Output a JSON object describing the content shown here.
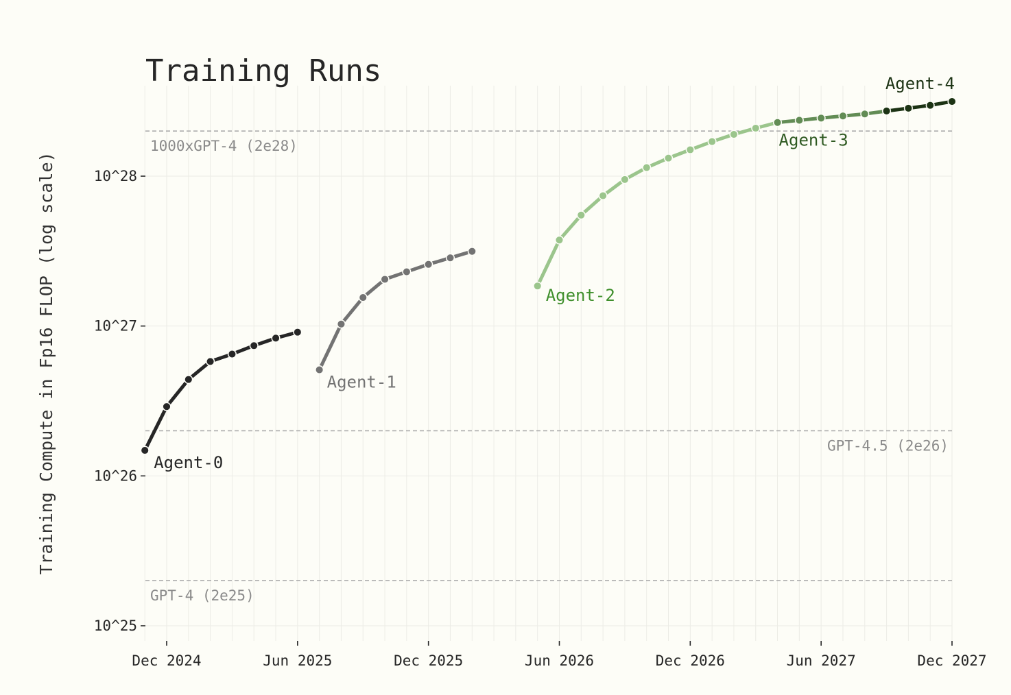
{
  "chart_data": {
    "type": "line",
    "title": "Training Runs",
    "ylabel": "Training Compute in Fp16 FLOP (log scale)",
    "xlabel": "",
    "y_scale": "log",
    "ylim": [
      1e+25,
      5e+28
    ],
    "xlim": [
      "2024-11-01",
      "2027-12-01"
    ],
    "grid": true,
    "legend": "none",
    "x_ticks": [
      {
        "date": "2024-12-01",
        "label": "Dec 2024"
      },
      {
        "date": "2025-06-01",
        "label": "Jun 2025"
      },
      {
        "date": "2025-12-01",
        "label": "Dec 2025"
      },
      {
        "date": "2026-06-01",
        "label": "Jun 2026"
      },
      {
        "date": "2026-12-01",
        "label": "Dec 2026"
      },
      {
        "date": "2027-06-01",
        "label": "Jun 2027"
      },
      {
        "date": "2027-12-01",
        "label": "Dec 2027"
      }
    ],
    "y_ticks": [
      {
        "value": 1e+25,
        "label": "10^25"
      },
      {
        "value": 1e+26,
        "label": "10^26"
      },
      {
        "value": 1e+27,
        "label": "10^27"
      },
      {
        "value": 1e+28,
        "label": "10^28"
      }
    ],
    "reference_lines": [
      {
        "value": 2e+25,
        "label": "GPT-4 (2e25)",
        "label_side": "left"
      },
      {
        "value": 2e+26,
        "label": "GPT-4.5 (2e26)",
        "label_side": "right"
      },
      {
        "value": 2e+28,
        "label": "1000xGPT-4 (2e28)",
        "label_side": "left"
      }
    ],
    "series": [
      {
        "name": "Agent-0",
        "color": "#262626",
        "x": [
          "2024-11-01",
          "2024-12-01",
          "2025-01-01",
          "2025-02-01",
          "2025-03-01",
          "2025-04-01",
          "2025-05-01",
          "2025-06-01"
        ],
        "y": [
          1.48e+26,
          2.9e+26,
          4.4e+26,
          5.8e+26,
          6.5e+26,
          7.4e+26,
          8.3e+26,
          9.1e+26
        ]
      },
      {
        "name": "Agent-1",
        "color": "#737373",
        "x": [
          "2025-07-01",
          "2025-08-01",
          "2025-09-01",
          "2025-10-01",
          "2025-11-01",
          "2025-12-01",
          "2026-01-01",
          "2026-02-01"
        ],
        "y": [
          5.1e+26,
          1.03e+27,
          1.55e+27,
          2.05e+27,
          2.3e+27,
          2.58e+27,
          2.85e+27,
          3.15e+27
        ]
      },
      {
        "name": "Agent-2",
        "color": "#9bc58c",
        "x": [
          "2026-05-01",
          "2026-06-01",
          "2026-07-01",
          "2026-08-01",
          "2026-09-01",
          "2026-10-01",
          "2026-11-01",
          "2026-12-01",
          "2027-01-01",
          "2027-02-01",
          "2027-03-01",
          "2027-04-01"
        ],
        "y": [
          1.85e+27,
          3.75e+27,
          5.5e+27,
          7.4e+27,
          9.5e+27,
          1.14e+28,
          1.32e+28,
          1.5e+28,
          1.7e+28,
          1.9e+28,
          2.09e+28,
          2.28e+28
        ]
      },
      {
        "name": "Agent-3",
        "color": "#628c55",
        "x": [
          "2027-04-01",
          "2027-05-01",
          "2027-06-01",
          "2027-07-01",
          "2027-08-01",
          "2027-09-01"
        ],
        "y": [
          2.28e+28,
          2.36e+28,
          2.44e+28,
          2.52e+28,
          2.6e+28,
          2.72e+28
        ]
      },
      {
        "name": "Agent-4",
        "color": "#1c3314",
        "x": [
          "2027-09-01",
          "2027-10-01",
          "2027-11-01",
          "2027-12-01"
        ],
        "y": [
          2.72e+28,
          2.84e+28,
          2.97e+28,
          3.15e+28
        ]
      }
    ],
    "annotations": [
      {
        "text": "Agent-0",
        "series": "Agent-0",
        "color": "#262626"
      },
      {
        "text": "Agent-1",
        "series": "Agent-1",
        "color": "#737373"
      },
      {
        "text": "Agent-2",
        "series": "Agent-2",
        "color": "#3f8f2c"
      },
      {
        "text": "Agent-3",
        "series": "Agent-3",
        "color": "#2f5a22"
      },
      {
        "text": "Agent-4",
        "series": "Agent-4",
        "color": "#1c3314"
      }
    ]
  }
}
